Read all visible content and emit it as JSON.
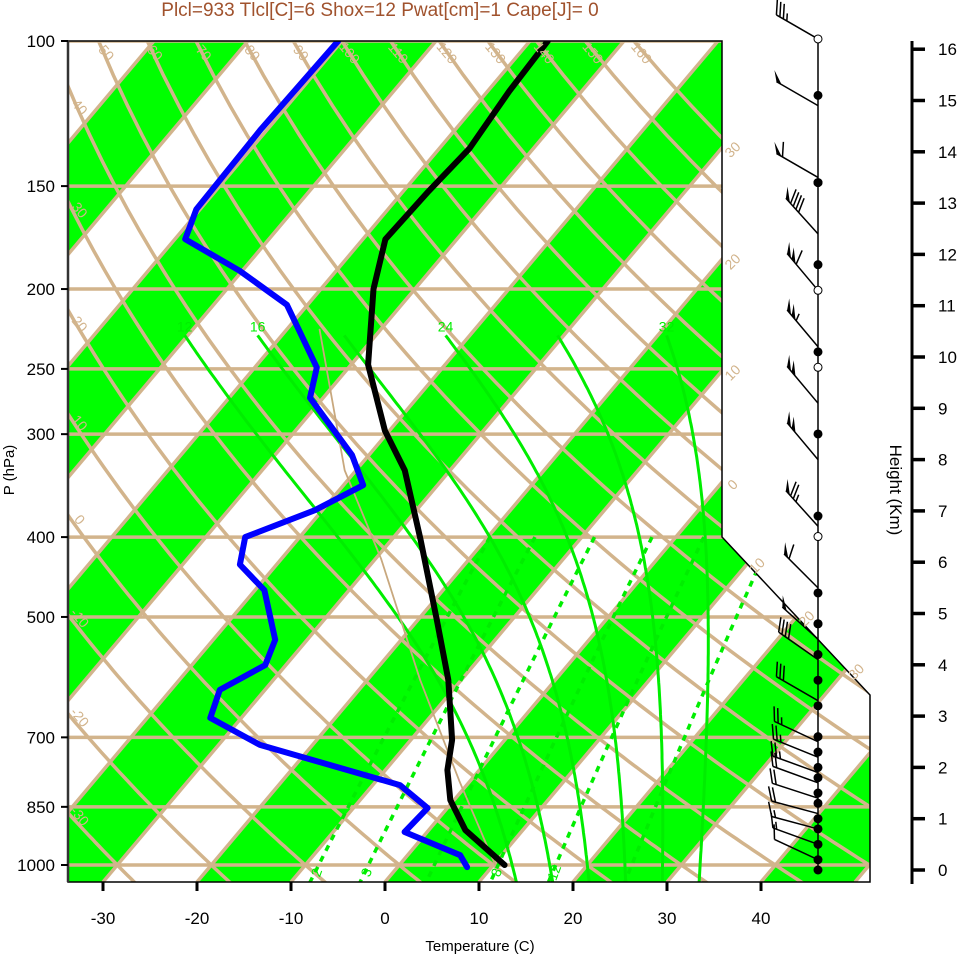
{
  "chart_data": {
    "type": "skew-t",
    "title": "Plcl=933 Tlcl[C]=6 Shox=12 Pwat[cm]=1 Cape[J]= 0",
    "xlabel": "Temperature (C)",
    "ylabel": "P (hPa)",
    "y2label": "Height (Km)",
    "xticks": [
      -30,
      -20,
      -10,
      0,
      10,
      20,
      30,
      40
    ],
    "pressure_ticks": [
      100,
      150,
      200,
      250,
      300,
      400,
      500,
      700,
      850,
      1000
    ],
    "height_ticks": [
      0,
      1,
      2,
      3,
      4,
      5,
      6,
      7,
      8,
      9,
      10,
      11,
      12,
      13,
      14,
      15,
      16
    ],
    "pressure_range": [
      100,
      1050
    ],
    "colors": {
      "band": "#00ff00",
      "grid": "#d2b48c",
      "temperature": "#000000",
      "dewpoint": "#0000ff",
      "title": "#a0522d"
    },
    "temperature": [
      {
        "p": 1000,
        "t": 11.2
      },
      {
        "p": 907,
        "t": 3.9
      },
      {
        "p": 834,
        "t": -0.4
      },
      {
        "p": 767,
        "t": -3.4
      },
      {
        "p": 705,
        "t": -5.6
      },
      {
        "p": 596,
        "t": -11.4
      },
      {
        "p": 504,
        "t": -18.0
      },
      {
        "p": 403,
        "t": -26.9
      },
      {
        "p": 332,
        "t": -34.8
      },
      {
        "p": 297,
        "t": -40.5
      },
      {
        "p": 247,
        "t": -48.2
      },
      {
        "p": 200,
        "t": -54.4
      },
      {
        "p": 174,
        "t": -57.6
      },
      {
        "p": 152,
        "t": -57.3
      },
      {
        "p": 135,
        "t": -56.8
      },
      {
        "p": 115,
        "t": -57.7
      },
      {
        "p": 100,
        "t": -58.1
      }
    ],
    "dewpoint": [
      {
        "p": 1006,
        "t": 7.4
      },
      {
        "p": 973,
        "t": 5.6
      },
      {
        "p": 912,
        "t": -2.4
      },
      {
        "p": 853,
        "t": -2.1
      },
      {
        "p": 800,
        "t": -7.1
      },
      {
        "p": 715,
        "t": -25.6
      },
      {
        "p": 663,
        "t": -33.3
      },
      {
        "p": 613,
        "t": -34.8
      },
      {
        "p": 572,
        "t": -32.2
      },
      {
        "p": 533,
        "t": -33.4
      },
      {
        "p": 464,
        "t": -39.0
      },
      {
        "p": 432,
        "t": -43.9
      },
      {
        "p": 400,
        "t": -45.8
      },
      {
        "p": 371,
        "t": -40.8
      },
      {
        "p": 346,
        "t": -37.9
      },
      {
        "p": 318,
        "t": -41.8
      },
      {
        "p": 271,
        "t": -51.4
      },
      {
        "p": 249,
        "t": -53.4
      },
      {
        "p": 209,
        "t": -62.2
      },
      {
        "p": 190,
        "t": -70.3
      },
      {
        "p": 174,
        "t": -78.9
      },
      {
        "p": 160,
        "t": -80.4
      },
      {
        "p": 128,
        "t": -80.7
      },
      {
        "p": 100,
        "t": -80.4
      }
    ],
    "parcel": [
      {
        "p": 1000,
        "t": 10.2
      },
      {
        "p": 790,
        "t": -1.2
      },
      {
        "p": 596,
        "t": -14.4
      },
      {
        "p": 425,
        "t": -29.4
      },
      {
        "p": 332,
        "t": -41.2
      },
      {
        "p": 224,
        "t": -56.5
      }
    ],
    "dry_adiabats": [
      -30,
      -20,
      -10,
      0,
      10,
      20,
      30,
      40,
      50,
      60,
      70,
      80,
      90,
      100,
      110,
      120,
      130,
      140,
      150,
      160
    ],
    "moist_adiabats": [
      {
        "theta_w": 12,
        "label": "12"
      },
      {
        "theta_w": 16,
        "label": "16"
      },
      {
        "theta_w": 20,
        "label": ""
      },
      {
        "theta_w": 24,
        "label": "24"
      },
      {
        "theta_w": 28,
        "label": ""
      },
      {
        "theta_w": 32,
        "label": "32"
      }
    ],
    "mixing_ratios": [
      {
        "w": 2,
        "label": "2"
      },
      {
        "w": 3,
        "label": "3"
      },
      {
        "w": 5,
        "label": ""
      },
      {
        "w": 8,
        "label": "8"
      },
      {
        "w": 12,
        "label": "12"
      },
      {
        "w": 20,
        "label": ""
      }
    ],
    "isotherm_labels": [
      {
        "t": -30,
        "text": "30"
      },
      {
        "t": -20,
        "text": "20"
      },
      {
        "t": -10,
        "text": "10"
      },
      {
        "t": 0,
        "text": "0"
      },
      {
        "t": 10,
        "text": "10"
      },
      {
        "t": 20,
        "text": "20"
      },
      {
        "t": 30,
        "text": "30"
      }
    ],
    "wind_barbs": [
      {
        "height_km": 16.2,
        "dir": 300,
        "speed": 35
      },
      {
        "height_km": 14.9,
        "dir": 300,
        "speed": 50
      },
      {
        "height_km": 13.5,
        "dir": 300,
        "speed": 60
      },
      {
        "height_km": 12.4,
        "dir": 318,
        "speed": 90
      },
      {
        "height_km": 11.3,
        "dir": 320,
        "speed": 110
      },
      {
        "height_km": 10.2,
        "dir": 320,
        "speed": 105
      },
      {
        "height_km": 9.1,
        "dir": 320,
        "speed": 100
      },
      {
        "height_km": 8.0,
        "dir": 320,
        "speed": 100
      },
      {
        "height_km": 6.7,
        "dir": 318,
        "speed": 75
      },
      {
        "height_km": 5.5,
        "dir": 315,
        "speed": 60
      },
      {
        "height_km": 4.5,
        "dir": 312,
        "speed": 50
      },
      {
        "height_km": 4.1,
        "dir": 305,
        "speed": 40
      },
      {
        "height_km": 3.3,
        "dir": 300,
        "speed": 30
      },
      {
        "height_km": 2.5,
        "dir": 295,
        "speed": 25
      },
      {
        "height_km": 2.2,
        "dir": 292,
        "speed": 25
      },
      {
        "height_km": 1.9,
        "dir": 290,
        "speed": 25
      },
      {
        "height_km": 1.7,
        "dir": 290,
        "speed": 20
      },
      {
        "height_km": 1.4,
        "dir": 288,
        "speed": 20
      },
      {
        "height_km": 1.1,
        "dir": 285,
        "speed": 20
      },
      {
        "height_km": 0.8,
        "dir": 285,
        "speed": 15
      },
      {
        "height_km": 0.5,
        "dir": 290,
        "speed": 15
      },
      {
        "height_km": 0.2,
        "dir": 295,
        "speed": 10
      }
    ],
    "levels_filled_km": [
      15.1,
      13.4,
      11.8,
      10.1,
      8.5,
      6.9,
      5.4,
      4.8,
      4.2,
      3.7,
      3.2,
      2.6,
      2.3,
      2.0,
      1.8,
      1.5,
      1.3,
      1.0,
      0.8,
      0.5,
      0.2,
      0.0
    ],
    "levels_open_km": [
      16.2,
      13.4,
      11.3,
      9.8,
      6.5,
      4.8
    ]
  }
}
